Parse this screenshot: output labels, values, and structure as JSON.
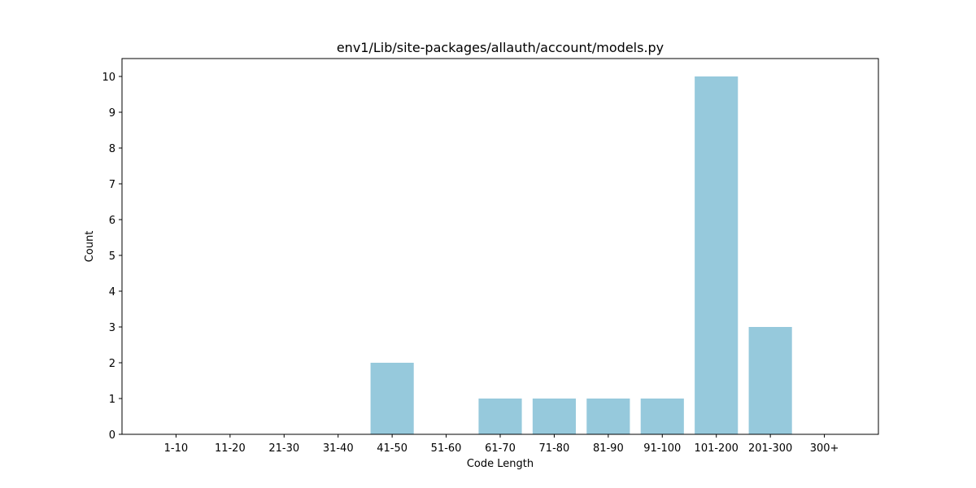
{
  "chart_data": {
    "type": "bar",
    "title": "env1/Lib/site-packages/allauth/account/models.py",
    "xlabel": "Code Length",
    "ylabel": "Count",
    "categories": [
      "1-10",
      "11-20",
      "21-30",
      "31-40",
      "41-50",
      "51-60",
      "61-70",
      "71-80",
      "81-90",
      "91-100",
      "101-200",
      "201-300",
      "300+"
    ],
    "values": [
      0,
      0,
      0,
      0,
      2,
      0,
      1,
      1,
      1,
      1,
      10,
      3,
      0
    ],
    "ylim": [
      0,
      10.5
    ],
    "yticks": [
      "0",
      "1",
      "2",
      "3",
      "4",
      "5",
      "6",
      "7",
      "8",
      "9",
      "10"
    ],
    "bar_color": "#96c9dc",
    "grid": false,
    "legend": "none"
  }
}
